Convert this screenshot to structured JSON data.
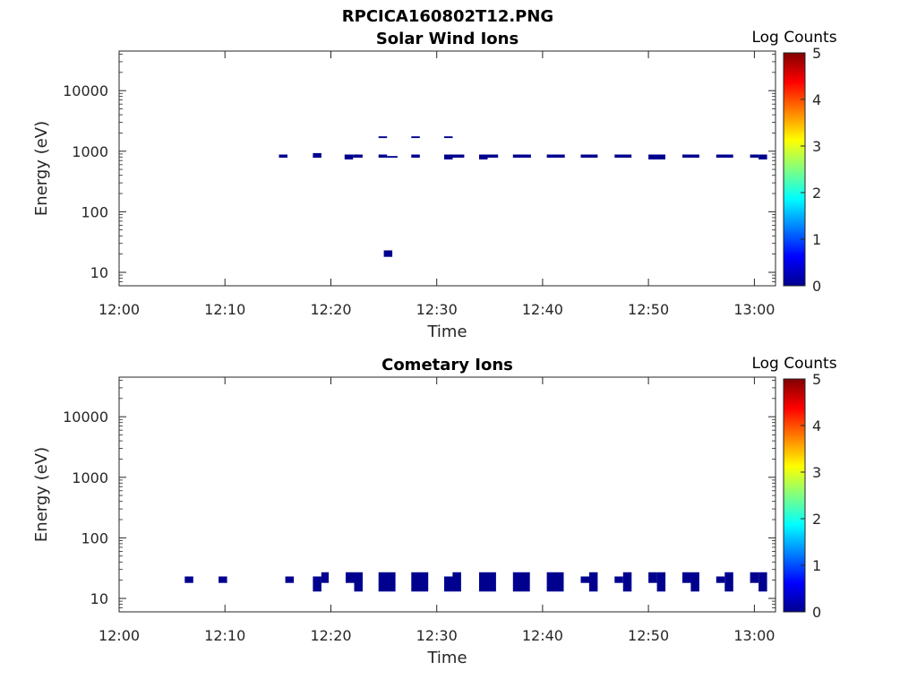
{
  "figure_title": "RPCICA160802T12.PNG",
  "colorbar": {
    "title": "Log Counts",
    "ticks": [
      "0",
      "1",
      "2",
      "3",
      "4",
      "5"
    ],
    "range": [
      0,
      5
    ],
    "colormap": "jet",
    "stops": [
      "#00008f",
      "#0000ff",
      "#0080ff",
      "#00ffff",
      "#80ff80",
      "#ffff00",
      "#ff8000",
      "#ff0000",
      "#800000"
    ]
  },
  "chart_data": [
    {
      "type": "heatmap",
      "title": "Solar Wind Ions",
      "xlabel": "Time",
      "ylabel": "Energy (eV)",
      "xlim": [
        "12:00",
        "13:02"
      ],
      "ylim": [
        6,
        45000
      ],
      "yscale": "log",
      "xticks": [
        "12:00",
        "12:10",
        "12:20",
        "12:30",
        "12:40",
        "12:50",
        "13:00"
      ],
      "yticks": [
        "10",
        "100",
        "1000",
        "10000"
      ],
      "color": "#00008f",
      "cells": [
        {
          "t0": "12:15.1",
          "t1": "12:15.9",
          "e0": 780,
          "e1": 880
        },
        {
          "t0": "12:18.3",
          "t1": "12:19.1",
          "e0": 780,
          "e1": 930
        },
        {
          "t0": "12:21.3",
          "t1": "12:22.1",
          "e0": 730,
          "e1": 880
        },
        {
          "t0": "12:22.1",
          "t1": "12:23.0",
          "e0": 780,
          "e1": 880
        },
        {
          "t0": "12:24.5",
          "t1": "12:25.3",
          "e0": 780,
          "e1": 880
        },
        {
          "t0": "12:25.3",
          "t1": "12:26.3",
          "e0": 780,
          "e1": 830
        },
        {
          "t0": "12:24.5",
          "t1": "12:25.3",
          "e0": 1650,
          "e1": 1760
        },
        {
          "t0": "12:27.6",
          "t1": "12:28.4",
          "e0": 1650,
          "e1": 1760
        },
        {
          "t0": "12:27.6",
          "t1": "12:28.4",
          "e0": 780,
          "e1": 880
        },
        {
          "t0": "12:30.7",
          "t1": "12:31.5",
          "e0": 1650,
          "e1": 1760
        },
        {
          "t0": "12:30.7",
          "t1": "12:31.5",
          "e0": 730,
          "e1": 880
        },
        {
          "t0": "12:31.5",
          "t1": "12:32.6",
          "e0": 780,
          "e1": 880
        },
        {
          "t0": "12:34.0",
          "t1": "12:34.8",
          "e0": 730,
          "e1": 880
        },
        {
          "t0": "12:34.8",
          "t1": "12:35.8",
          "e0": 780,
          "e1": 880
        },
        {
          "t0": "12:37.2",
          "t1": "12:38.9",
          "e0": 780,
          "e1": 880
        },
        {
          "t0": "12:40.4",
          "t1": "12:42.1",
          "e0": 780,
          "e1": 880
        },
        {
          "t0": "12:43.6",
          "t1": "12:45.2",
          "e0": 780,
          "e1": 880
        },
        {
          "t0": "12:46.8",
          "t1": "12:48.4",
          "e0": 780,
          "e1": 880
        },
        {
          "t0": "12:50.0",
          "t1": "12:51.6",
          "e0": 730,
          "e1": 880
        },
        {
          "t0": "12:53.2",
          "t1": "12:54.8",
          "e0": 780,
          "e1": 880
        },
        {
          "t0": "12:56.4",
          "t1": "12:58.0",
          "e0": 780,
          "e1": 880
        },
        {
          "t0": "12:59.6",
          "t1": "13:00.4",
          "e0": 780,
          "e1": 880
        },
        {
          "t0": "13:00.4",
          "t1": "13:01.2",
          "e0": 730,
          "e1": 880
        },
        {
          "t0": "12:25.0",
          "t1": "12:25.8",
          "e0": 18,
          "e1": 23
        }
      ]
    },
    {
      "type": "heatmap",
      "title": "Cometary Ions",
      "xlabel": "Time",
      "ylabel": "Energy (eV)",
      "xlim": [
        "12:00",
        "13:02"
      ],
      "ylim": [
        6,
        45000
      ],
      "yscale": "log",
      "xticks": [
        "12:00",
        "12:10",
        "12:20",
        "12:30",
        "12:40",
        "12:50",
        "13:00"
      ],
      "yticks": [
        "10",
        "100",
        "1000",
        "10000"
      ],
      "color": "#00008f",
      "cells": [
        {
          "t0": "12:06.2",
          "t1": "12:07.0",
          "e0": 18,
          "e1": 23
        },
        {
          "t0": "12:09.4",
          "t1": "12:10.2",
          "e0": 18,
          "e1": 23
        },
        {
          "t0": "12:15.7",
          "t1": "12:16.5",
          "e0": 18,
          "e1": 23
        },
        {
          "t0": "12:18.3",
          "t1": "12:19.1",
          "e0": 13,
          "e1": 23
        },
        {
          "t0": "12:19.1",
          "t1": "12:19.8",
          "e0": 18,
          "e1": 27
        },
        {
          "t0": "12:21.4",
          "t1": "12:22.2",
          "e0": 18,
          "e1": 27
        },
        {
          "t0": "12:22.2",
          "t1": "12:23.0",
          "e0": 13,
          "e1": 27
        },
        {
          "t0": "12:24.5",
          "t1": "12:26.1",
          "e0": 13,
          "e1": 27
        },
        {
          "t0": "12:27.6",
          "t1": "12:29.2",
          "e0": 13,
          "e1": 27
        },
        {
          "t0": "12:30.7",
          "t1": "12:31.5",
          "e0": 13,
          "e1": 23
        },
        {
          "t0": "12:31.5",
          "t1": "12:32.3",
          "e0": 13,
          "e1": 27
        },
        {
          "t0": "12:34.0",
          "t1": "12:35.6",
          "e0": 13,
          "e1": 27
        },
        {
          "t0": "12:37.2",
          "t1": "12:38.8",
          "e0": 13,
          "e1": 27
        },
        {
          "t0": "12:40.4",
          "t1": "12:42.0",
          "e0": 13,
          "e1": 27
        },
        {
          "t0": "12:43.6",
          "t1": "12:44.4",
          "e0": 18,
          "e1": 23
        },
        {
          "t0": "12:44.4",
          "t1": "12:45.2",
          "e0": 13,
          "e1": 27
        },
        {
          "t0": "12:46.8",
          "t1": "12:47.6",
          "e0": 18,
          "e1": 23
        },
        {
          "t0": "12:47.6",
          "t1": "12:48.4",
          "e0": 13,
          "e1": 27
        },
        {
          "t0": "12:50.0",
          "t1": "12:50.8",
          "e0": 18,
          "e1": 27
        },
        {
          "t0": "12:50.8",
          "t1": "12:51.6",
          "e0": 13,
          "e1": 27
        },
        {
          "t0": "12:53.2",
          "t1": "12:54.0",
          "e0": 18,
          "e1": 27
        },
        {
          "t0": "12:54.0",
          "t1": "12:54.8",
          "e0": 13,
          "e1": 27
        },
        {
          "t0": "12:56.4",
          "t1": "12:57.2",
          "e0": 18,
          "e1": 23
        },
        {
          "t0": "12:57.2",
          "t1": "12:58.0",
          "e0": 13,
          "e1": 27
        },
        {
          "t0": "12:59.6",
          "t1": "13:00.4",
          "e0": 18,
          "e1": 27
        },
        {
          "t0": "13:00.4",
          "t1": "13:01.2",
          "e0": 13,
          "e1": 27
        }
      ]
    }
  ]
}
